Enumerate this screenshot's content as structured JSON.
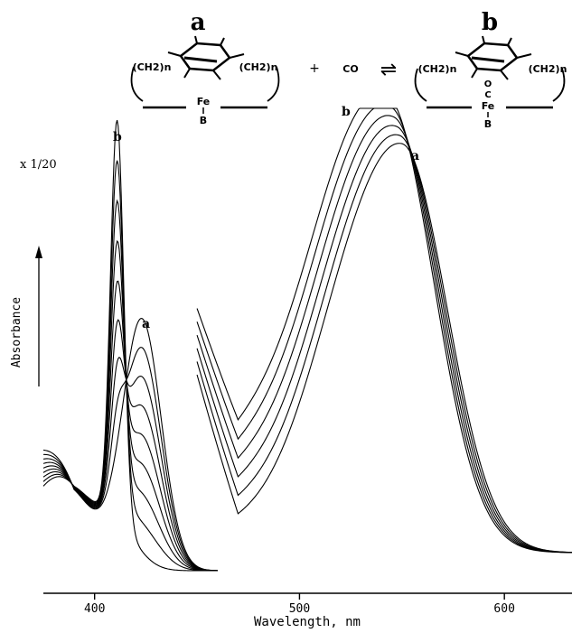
{
  "chart_data": {
    "type": "line",
    "xlabel": "Wavelength, nm",
    "ylabel": "Absorbance",
    "xlim": [
      375,
      633
    ],
    "xticks": [
      400,
      500,
      600
    ],
    "soret_scale_label": "x 1/20",
    "curve_end_labels": {
      "start": "a",
      "end": "b"
    },
    "soret_band": {
      "x_range": [
        375,
        460
      ],
      "peak_a_nm": 423,
      "peak_b_nm": 411,
      "isosbestic_nm": [
        393,
        414
      ],
      "series_count": 9
    },
    "visible_band": {
      "x_range": [
        450,
        633
      ],
      "peak_a_nm": 550,
      "peak_b_nm": 544,
      "isosbestic_nm": [
        553
      ],
      "series_count": 6
    }
  },
  "scheme": {
    "label_a": "a",
    "label_b": "b",
    "plus": "+",
    "reagent": "CO",
    "equilibrium_arrow": "⇌",
    "chain_left": "(CH2)n",
    "chain_right": "(CH2)n",
    "metal": "Fe",
    "base": "B",
    "ligand_o": "O",
    "ligand_c": "C"
  }
}
